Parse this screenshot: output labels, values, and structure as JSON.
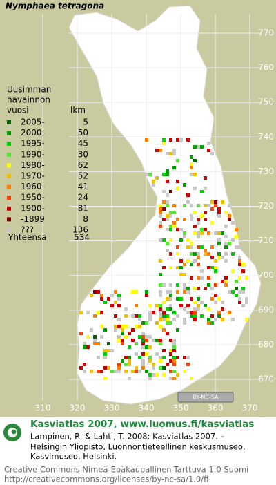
{
  "title": "Nymphaea tetragona",
  "legend": {
    "heading": [
      "Uusimman",
      "havainnon",
      "vuosi"
    ],
    "count_heading": "lkm",
    "rows": [
      {
        "label": "2005-",
        "count": 5,
        "color": "#006400"
      },
      {
        "label": "2000-",
        "count": 50,
        "color": "#00a000"
      },
      {
        "label": "1995-",
        "count": 45,
        "color": "#00d000"
      },
      {
        "label": "1990-",
        "count": 30,
        "color": "#50e830"
      },
      {
        "label": "1980-",
        "count": 62,
        "color": "#ffff00"
      },
      {
        "label": "1970-",
        "count": 52,
        "color": "#f0c000"
      },
      {
        "label": "1960-",
        "count": 41,
        "color": "#ff8000"
      },
      {
        "label": "1950-",
        "count": 24,
        "color": "#ff4000"
      },
      {
        "label": "1900-",
        "count": 81,
        "color": "#d00000"
      },
      {
        "label": "-1899",
        "count": 8,
        "color": "#800000"
      },
      {
        "label": "???",
        "count": 136,
        "color": "#c8c8c8"
      }
    ],
    "total_label": "Yhteensä",
    "total": 534
  },
  "map": {
    "xlim": [
      300,
      380
    ],
    "ylim": [
      662,
      780
    ],
    "xticks": [
      310,
      320,
      330,
      340,
      350,
      360,
      370
    ],
    "yticks": [
      670,
      680,
      690,
      700,
      710,
      720,
      730,
      740,
      750,
      760,
      770
    ]
  },
  "badge": "BY-NC-SA",
  "footer": {
    "site": "Kasviatlas 2007, www.luomus.fi/kasviatlas",
    "citation": [
      "Lampinen, R. & Lahti, T. 2008: Kasviatlas 2007. –",
      "Helsingin Yliopisto, Luonnontieteellinen keskusmuseo,",
      "Kasvimuseo, Helsinki."
    ],
    "license": [
      "Creative Commons Nimeä-Epäkaupallinen-Tarttuva 1.0 Suomi",
      "http://creativecommons.org/licenses/by-nc-sa/1.0/fi"
    ]
  }
}
